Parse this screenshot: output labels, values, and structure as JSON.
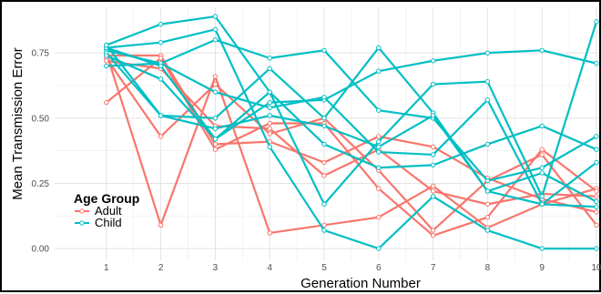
{
  "chart_data": {
    "type": "line",
    "title": "",
    "xlabel": "Generation Number",
    "ylabel": "Mean Transmission Error",
    "x": [
      1,
      2,
      3,
      4,
      5,
      6,
      7,
      8,
      9,
      10
    ],
    "x_tick_labels": [
      "1",
      "2",
      "3",
      "4",
      "5",
      "6",
      "7",
      "8",
      "9",
      "10"
    ],
    "y_ticks": [
      0.0,
      0.25,
      0.5,
      0.75
    ],
    "y_tick_labels": [
      "0.00",
      "0.25",
      "0.50",
      "0.75"
    ],
    "xlim": [
      0.05,
      10.05
    ],
    "ylim": [
      -0.045,
      0.925
    ],
    "grid": true,
    "legend": {
      "title": "Age Group",
      "position": "bottom-left",
      "entries": [
        {
          "label": "Adult",
          "color": "#F8766D"
        },
        {
          "label": "Child",
          "color": "#00BFC4"
        }
      ]
    },
    "colors": {
      "Adult": "#F8766D",
      "Child": "#00BFC4"
    },
    "series": [
      {
        "group": "Adult",
        "values": [
          0.75,
          0.09,
          0.66,
          0.06,
          0.09,
          0.12,
          0.24,
          0.08,
          0.17,
          0.23
        ]
      },
      {
        "group": "Adult",
        "values": [
          0.74,
          0.74,
          0.4,
          0.41,
          0.33,
          0.43,
          0.39,
          0.27,
          0.19,
          0.14
        ]
      },
      {
        "group": "Adult",
        "values": [
          0.73,
          0.43,
          0.63,
          0.44,
          0.5,
          0.3,
          0.07,
          0.26,
          0.36,
          0.09
        ]
      },
      {
        "group": "Adult",
        "values": [
          0.56,
          0.73,
          0.38,
          0.48,
          0.48,
          0.23,
          0.05,
          0.12,
          0.38,
          0.22
        ]
      },
      {
        "group": "Adult",
        "values": [
          0.72,
          0.69,
          0.47,
          0.46,
          0.28,
          0.38,
          0.22,
          0.17,
          0.21,
          0.2
        ]
      },
      {
        "group": "Child",
        "values": [
          0.78,
          0.86,
          0.89,
          0.6,
          0.17,
          0.41,
          0.63,
          0.64,
          0.2,
          0.87
        ]
      },
      {
        "group": "Child",
        "values": [
          0.76,
          0.71,
          0.8,
          0.73,
          0.76,
          0.53,
          0.5,
          0.26,
          0.31,
          0.43
        ]
      },
      {
        "group": "Child",
        "values": [
          0.75,
          0.51,
          0.5,
          0.69,
          0.5,
          0.77,
          0.52,
          0.22,
          0.17,
          0.16
        ]
      },
      {
        "group": "Child",
        "values": [
          0.77,
          0.79,
          0.84,
          0.39,
          0.07,
          0.0,
          0.2,
          0.07,
          0.0,
          0.0
        ]
      },
      {
        "group": "Child",
        "values": [
          0.74,
          0.65,
          0.42,
          0.56,
          0.57,
          0.68,
          0.72,
          0.75,
          0.76,
          0.71
        ]
      },
      {
        "group": "Child",
        "values": [
          0.7,
          0.71,
          0.6,
          0.54,
          0.58,
          0.37,
          0.36,
          0.57,
          0.17,
          0.33
        ]
      },
      {
        "group": "Child",
        "values": [
          0.77,
          0.7,
          0.42,
          0.6,
          0.4,
          0.31,
          0.32,
          0.4,
          0.47,
          0.38
        ]
      },
      {
        "group": "Child",
        "values": [
          0.78,
          0.51,
          0.46,
          0.51,
          0.47,
          0.39,
          0.51,
          0.22,
          0.29,
          0.18
        ]
      }
    ]
  }
}
